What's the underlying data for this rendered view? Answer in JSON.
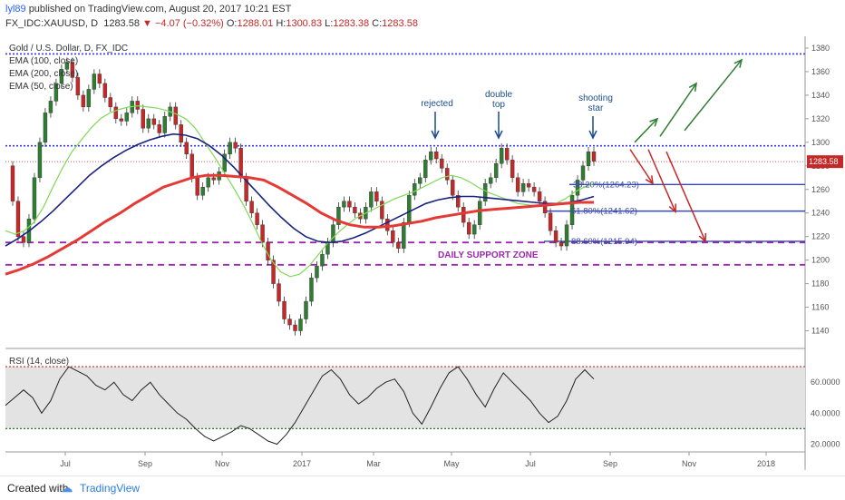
{
  "header": {
    "user": "lyl89",
    "published_text": "published on TradingView.com, August 20, 2017 10:21 EST",
    "symbol": "FX_IDC:XAUUSD, D",
    "last": "1283.58",
    "change": "▼ −4.07 (−0.32%)",
    "o_label": "O:",
    "o_val": "1288.01",
    "h_label": "H:",
    "h_val": "1300.83",
    "l_label": "L:",
    "l_val": "1283.38",
    "c_label": "C:",
    "c_val": "1283.58"
  },
  "legend": [
    "Gold / U.S. Dollar, D, FX_IDC",
    "EMA (100, close)",
    "EMA (200, close)",
    "EMA (50, close)"
  ],
  "price_badge": "1283.58",
  "annotations": {
    "rejected": "rejected",
    "double_top_1": "double",
    "double_top_2": "top",
    "shooting_1": "shooting",
    "shooting_2": "star",
    "support_zone": "DAILY SUPPORT ZONE"
  },
  "fib_labels": [
    "38.20%(1264.23)",
    "61.80%(1241.62)",
    "88.60%(1215.94)"
  ],
  "rsi_label": "RSI (14, close)",
  "footer": {
    "created_with": "Created with",
    "brand": "TradingView"
  },
  "colors": {
    "up": "#2e7d32",
    "down": "#c62828",
    "ema50": "#7ed957",
    "ema100": "#1a237e",
    "ema200": "#e53935",
    "blue_dotted": "#3a3ad6",
    "purple": "#9c27b0",
    "fib": "#3949ab"
  },
  "chart_data": {
    "type": "line",
    "title": "Gold / U.S. Dollar, D, FX_IDC",
    "y_ticks": [
      1140,
      1160,
      1180,
      1200,
      1220,
      1240,
      1260,
      1280,
      1300,
      1320,
      1340,
      1360,
      1380
    ],
    "x_ticks": [
      "Jul",
      "Sep",
      "Nov",
      "2017",
      "Mar",
      "May",
      "Jul",
      "Sep",
      "Nov",
      "2018"
    ],
    "ylim": [
      1125,
      1390
    ],
    "rsi_ticks": [
      "20.0000",
      "40.0000",
      "60.0000"
    ],
    "rsi_ylim": [
      15,
      80
    ],
    "resistance_high": 1375,
    "resistance_mid": 1297,
    "current_price": 1283.58,
    "support_zone": [
      1215,
      1196
    ],
    "fib_levels": [
      1264.23,
      1241.62,
      1215.94
    ],
    "rsi_bands": [
      70,
      30
    ],
    "price_series": [
      1280,
      1250,
      1220,
      1215,
      1235,
      1270,
      1300,
      1325,
      1335,
      1350,
      1362,
      1368,
      1355,
      1340,
      1330,
      1345,
      1358,
      1350,
      1338,
      1330,
      1320,
      1318,
      1325,
      1335,
      1328,
      1312,
      1320,
      1315,
      1308,
      1322,
      1330,
      1315,
      1300,
      1290,
      1270,
      1255,
      1262,
      1270,
      1268,
      1275,
      1290,
      1300,
      1295,
      1270,
      1250,
      1240,
      1230,
      1215,
      1200,
      1180,
      1165,
      1150,
      1145,
      1140,
      1150,
      1165,
      1185,
      1195,
      1205,
      1215,
      1230,
      1245,
      1250,
      1245,
      1240,
      1235,
      1245,
      1258,
      1250,
      1235,
      1225,
      1215,
      1210,
      1232,
      1255,
      1265,
      1270,
      1285,
      1292,
      1286,
      1278,
      1268,
      1255,
      1245,
      1232,
      1222,
      1230,
      1250,
      1265,
      1270,
      1282,
      1295,
      1285,
      1270,
      1258,
      1265,
      1262,
      1258,
      1250,
      1240,
      1225,
      1215,
      1212,
      1230,
      1255,
      1268,
      1280,
      1292,
      1284
    ],
    "ema50_series": [
      1225,
      1222,
      1225,
      1232,
      1245,
      1262,
      1278,
      1292,
      1302,
      1312,
      1320,
      1325,
      1328,
      1330,
      1331,
      1330,
      1329,
      1327,
      1324,
      1320,
      1312,
      1300,
      1288,
      1275,
      1262,
      1248,
      1232,
      1215,
      1200,
      1190,
      1186,
      1188,
      1195,
      1205,
      1215,
      1223,
      1230,
      1236,
      1240,
      1244,
      1248,
      1252,
      1255,
      1258,
      1262,
      1266,
      1270,
      1272,
      1270,
      1266,
      1261,
      1257,
      1254,
      1251,
      1248,
      1247,
      1246,
      1246,
      1248,
      1252,
      1258,
      1262,
      1265
    ],
    "ema100_series": [
      1212,
      1218,
      1225,
      1233,
      1242,
      1252,
      1262,
      1272,
      1280,
      1287,
      1293,
      1298,
      1302,
      1305,
      1307,
      1306,
      1303,
      1297,
      1289,
      1279,
      1268,
      1257,
      1246,
      1236,
      1227,
      1220,
      1216,
      1215,
      1216,
      1219,
      1223,
      1228,
      1233,
      1238,
      1243,
      1248,
      1251,
      1253,
      1254,
      1254,
      1253,
      1252,
      1251,
      1250,
      1249,
      1248,
      1248,
      1249,
      1251,
      1254
    ],
    "ema200_series": [
      1188,
      1192,
      1197,
      1203,
      1210,
      1217,
      1225,
      1233,
      1240,
      1248,
      1255,
      1262,
      1266,
      1270,
      1272,
      1272,
      1271,
      1270,
      1268,
      1262,
      1255,
      1248,
      1240,
      1234,
      1230,
      1228,
      1228,
      1229,
      1231,
      1233,
      1236,
      1238,
      1240,
      1242,
      1243,
      1244,
      1245,
      1246,
      1247,
      1248,
      1249,
      1249
    ],
    "rsi_series": [
      45,
      50,
      55,
      50,
      40,
      48,
      62,
      70,
      67,
      64,
      58,
      55,
      60,
      52,
      48,
      55,
      60,
      52,
      46,
      40,
      36,
      30,
      25,
      22,
      25,
      28,
      32,
      30,
      26,
      22,
      20,
      26,
      34,
      44,
      54,
      64,
      68,
      62,
      52,
      46,
      50,
      56,
      60,
      62,
      54,
      40,
      33,
      44,
      56,
      66,
      70,
      62,
      52,
      44,
      56,
      66,
      60,
      54,
      48,
      40,
      34,
      38,
      48,
      62,
      68,
      62
    ],
    "projections_up": [
      [
        1300,
        1320
      ],
      [
        1305,
        1350
      ],
      [
        1310,
        1370
      ]
    ],
    "projections_down": [
      [
        1294,
        1265
      ],
      [
        1294,
        1241
      ],
      [
        1292,
        1216
      ]
    ]
  }
}
